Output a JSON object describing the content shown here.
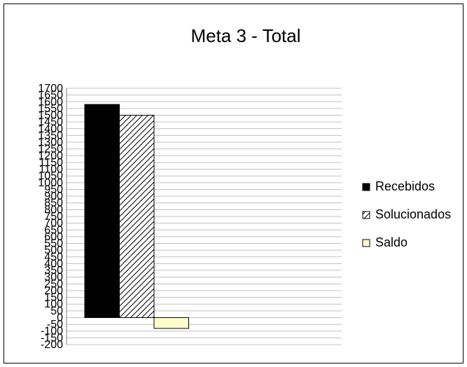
{
  "chart_data": {
    "type": "bar",
    "title": "Meta 3 - Total",
    "xlabel": "",
    "ylabel": "",
    "ylim": [
      -200,
      1700
    ],
    "y_ticks": [
      -200,
      -150,
      -100,
      -50,
      0,
      50,
      100,
      150,
      200,
      250,
      300,
      350,
      400,
      450,
      500,
      550,
      600,
      650,
      700,
      750,
      800,
      850,
      900,
      950,
      1000,
      1050,
      1100,
      1150,
      1200,
      1250,
      1300,
      1350,
      1400,
      1450,
      1500,
      1550,
      1600,
      1650,
      1700
    ],
    "grid": true,
    "legend_position": "right",
    "categories": [
      ""
    ],
    "series": [
      {
        "name": "Recebidos",
        "values": [
          1580
        ],
        "color": "#000000",
        "pattern": "solid"
      },
      {
        "name": "Solucionados",
        "values": [
          1500
        ],
        "color": "#ffffff",
        "pattern": "diagonal-hatch"
      },
      {
        "name": "Saldo",
        "values": [
          -80
        ],
        "color": "#ffffcc",
        "pattern": "solid"
      }
    ]
  }
}
